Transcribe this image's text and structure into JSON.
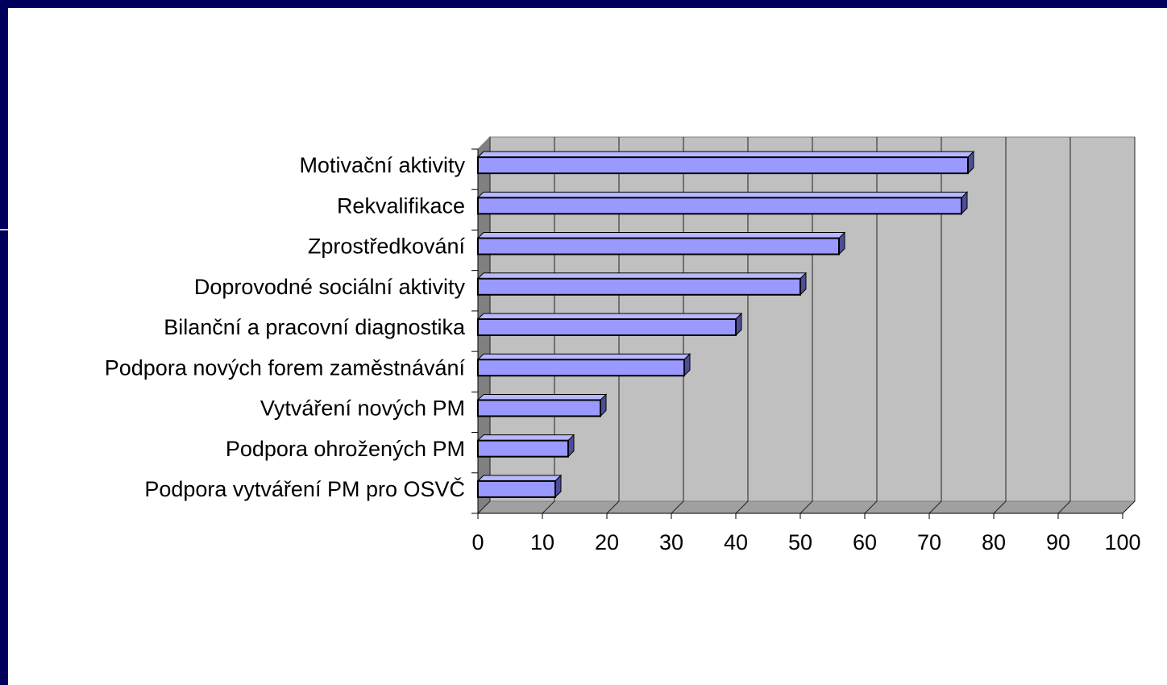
{
  "chart_data": {
    "type": "bar",
    "orientation": "horizontal",
    "categories": [
      "Motivační aktivity",
      "Rekvalifikace",
      "Zprostředkování",
      "Doprovodné sociální aktivity",
      "Bilanční a pracovní diagnostika",
      "Podpora nových forem zaměstnávání",
      "Vytváření nových PM",
      "Podpora ohrožených PM",
      "Podpora vytváření PM pro OSVČ"
    ],
    "values": [
      76,
      75,
      56,
      50,
      40,
      32,
      19,
      14,
      12
    ],
    "color": "#9999ff",
    "xlim": [
      0,
      100
    ],
    "xticks": [
      0,
      10,
      20,
      30,
      40,
      50,
      60,
      70,
      80,
      90,
      100
    ],
    "grid": true
  }
}
